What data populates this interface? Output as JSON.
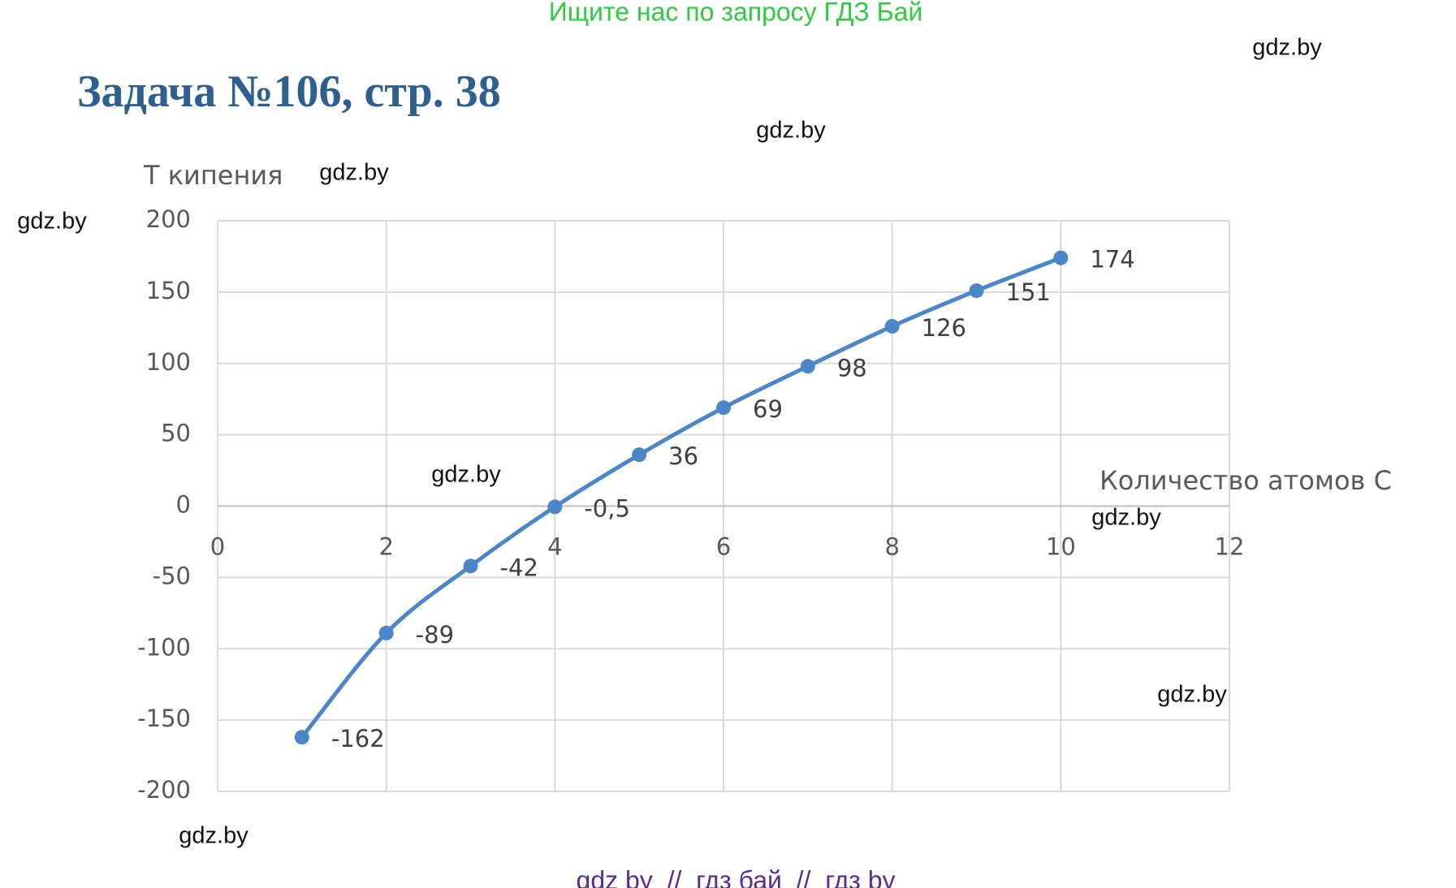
{
  "header": {
    "banner": "Ищите нас по запросу ГДЗ Бай",
    "title": "Задача №106, стр. 38"
  },
  "watermarks": [
    "gdz.by",
    "gdz.by",
    "gdz.by",
    "gdz.by",
    "gdz.by",
    "gdz.by",
    "gdz.by",
    "gdz.by"
  ],
  "footer": "gdz by  //  гдз бай  //  гдз by",
  "chart_data": {
    "type": "line",
    "y_label": "Т кипения",
    "x_label": "Количество атомов С",
    "x": [
      1,
      2,
      3,
      4,
      5,
      6,
      7,
      8,
      9,
      10
    ],
    "series": [
      {
        "name": "Т кипения",
        "color": "#4a86c8",
        "values": [
          -162,
          -89,
          -42,
          -0.5,
          36,
          69,
          98,
          126,
          151,
          174
        ],
        "value_labels": [
          "-162",
          "-89",
          "-42",
          "-0,5",
          "36",
          "69",
          "98",
          "126",
          "151",
          "174"
        ]
      }
    ],
    "xlim": [
      0,
      12
    ],
    "xticks": [
      0,
      2,
      4,
      6,
      8,
      10,
      12
    ],
    "ylim": [
      -200,
      200
    ],
    "yticks": [
      -200,
      -150,
      -100,
      -50,
      0,
      50,
      100,
      150,
      200
    ],
    "grid": true
  }
}
